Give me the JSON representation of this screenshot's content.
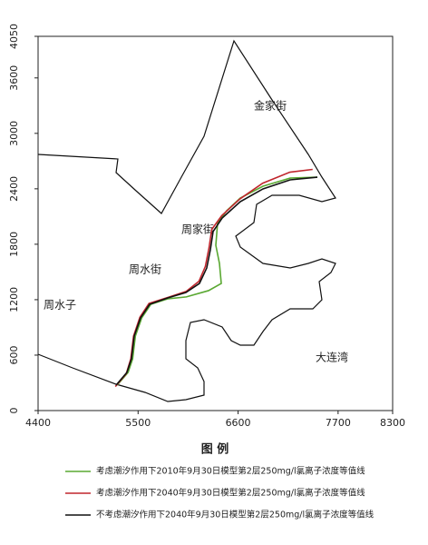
{
  "chart_data": {
    "type": "line",
    "xlim": [
      4400,
      8300
    ],
    "ylim": [
      0,
      4050
    ],
    "xticks": [
      4400,
      5500,
      6600,
      7700,
      8300
    ],
    "yticks": [
      0,
      600,
      1200,
      1800,
      2400,
      3000,
      3600,
      4050
    ],
    "annotations": [
      "金家街",
      "周家街",
      "周水街",
      "周水子",
      "大连湾"
    ],
    "legend_title": "图 例",
    "series": [
      {
        "name": "考虑潮汐作用下2010年9月30日模型第2层250mg/l氯离子浓度等值线",
        "color": "#5aa832",
        "x": [
          5270,
          5390,
          5440,
          5470,
          5540,
          5640,
          5830,
          6030,
          6275,
          6415,
          6395,
          6355,
          6375,
          6475,
          6624,
          6874,
          7173,
          7472
        ],
        "y": [
          275,
          413,
          560,
          806,
          1003,
          1150,
          1210,
          1230,
          1298,
          1376,
          1592,
          1789,
          2035,
          2163,
          2300,
          2428,
          2516,
          2526
        ]
      },
      {
        "name": "考虑潮汐作用下2040年9月30日模型第2层250mg/l氯离子浓度等值线",
        "color": "#c0262d",
        "x": [
          5250,
          5370,
          5420,
          5450,
          5520,
          5620,
          5830,
          6030,
          6170,
          6240,
          6280,
          6310,
          6420,
          6620,
          6870,
          7170,
          7420
        ],
        "y": [
          260,
          400,
          560,
          806,
          1010,
          1160,
          1225,
          1290,
          1400,
          1560,
          1760,
          1960,
          2110,
          2290,
          2460,
          2580,
          2610
        ]
      },
      {
        "name": "不考虑潮汐作用下2040年9月30日模型第2层250mg/l氯离子浓度等值线",
        "color": "#111111",
        "x": [
          5258,
          5377,
          5427,
          5457,
          5527,
          5627,
          5826,
          6026,
          6175,
          6255,
          6295,
          6325,
          6425,
          6624,
          6874,
          7173,
          7472
        ],
        "y": [
          275,
          413,
          560,
          806,
          1003,
          1150,
          1219,
          1278,
          1376,
          1543,
          1740,
          1937,
          2084,
          2261,
          2399,
          2497,
          2526
        ]
      }
    ]
  }
}
